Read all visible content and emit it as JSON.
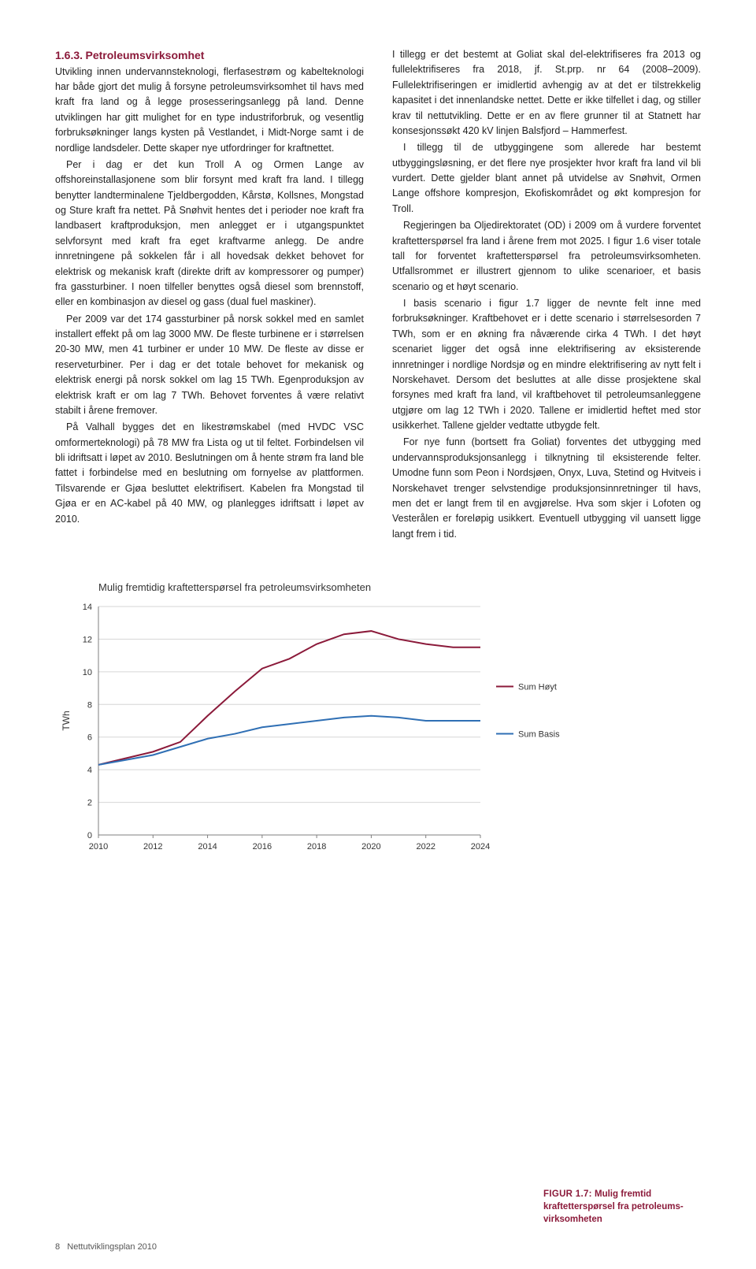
{
  "section": {
    "number": "1.6.3.",
    "title": "Petroleumsvirksomhet"
  },
  "left_col": {
    "p1": "Utvikling innen undervannsteknologi, flerfasestrøm og kabelteknologi har både gjort det mulig å forsyne petroleumsvirksomhet til havs med kraft fra land og å legge prosesseringsanlegg på land. Denne utviklingen har gitt mulighet for en type industriforbruk, og vesentlig forbruksøkninger langs kysten på Vestlandet, i Midt-Norge samt i de nordlige landsdeler. Dette skaper nye utfordringer for kraftnettet.",
    "p2": "Per i dag er det kun Troll A og Ormen Lange av offshoreinstallasjonene som blir forsynt med kraft fra land. I tillegg benytter landterminalene Tjeldbergodden, Kårstø, Kollsnes, Mongstad og Sture kraft fra nettet. På Snøhvit hentes det i perioder noe kraft fra landbasert kraftproduksjon, men anlegget er i utgangspunktet selvforsynt med kraft fra eget kraftvarme anlegg. De andre innretningene på sokkelen får i all hovedsak dekket behovet for elektrisk og mekanisk kraft (direkte drift av kompressorer og pumper) fra gassturbiner. I noen tilfeller benyttes også diesel som brennstoff, eller en kombinasjon av diesel og gass (dual fuel maskiner).",
    "p3": "Per 2009 var det 174 gassturbiner på norsk sokkel med en samlet installert effekt på om lag 3000 MW. De fleste turbinene er i størrelsen 20-30 MW, men 41 turbiner er under 10 MW. De fleste av disse er reserveturbiner. Per i dag er det totale behovet for mekanisk og elektrisk energi på norsk sokkel om lag 15 TWh. Egenproduksjon av elektrisk kraft er om lag 7 TWh. Behovet forventes å være relativt stabilt i årene fremover.",
    "p4": "På Valhall bygges det en likestrømskabel (med HVDC VSC omformerteknologi) på 78 MW fra Lista og ut til feltet. Forbindelsen vil bli idriftsatt i løpet av 2010. Beslutningen om å hente strøm fra land ble fattet i forbindelse med en beslutning om fornyelse av plattformen. Tilsvarende er Gjøa besluttet elektrifisert. Kabelen fra Mongstad til Gjøa er en AC-kabel på 40 MW, og planlegges idriftsatt i løpet av 2010."
  },
  "right_col": {
    "p1": "I tillegg er det bestemt at Goliat skal del-elektrifiseres fra 2013 og fullelektrifiseres fra 2018, jf. St.prp. nr 64 (2008–2009). Fullelektrifiseringen er imidlertid avhengig av at det er tilstrekkelig kapasitet i det innenlandske nettet. Dette er ikke tilfellet i dag, og stiller krav til nettutvikling. Dette er en av flere grunner til at Statnett har konsesjonssøkt 420 kV linjen Balsfjord – Hammerfest.",
    "p2": "I tillegg til de utbyggingene som allerede har bestemt utbyggingsløsning, er det flere nye prosjekter hvor kraft fra land vil bli vurdert. Dette gjelder blant annet på utvidelse av Snøhvit, Ormen Lange offshore kompresjon, Ekofiskområdet og økt kompresjon for Troll.",
    "p3": "Regjeringen ba Oljedirektoratet (OD) i 2009 om å vurdere forventet kraftetterspørsel fra land i årene frem mot 2025. I figur 1.6 viser totale tall for forventet kraftetterspørsel fra petroleumsvirksomheten. Utfallsrommet er illustrert gjennom to ulike scenarioer, et basis scenario og et høyt scenario.",
    "p4": "I basis scenario i figur 1.7 ligger de nevnte felt inne med forbruksøkninger. Kraftbehovet er i dette scenario i størrelsesorden 7 TWh, som er en økning fra nåværende cirka 4 TWh. I det høyt scenariet ligger det også inne elektrifisering av eksisterende innretninger i nordlige Nordsjø og en mindre elektrifisering av nytt felt i Norskehavet. Dersom det besluttes at alle disse prosjektene skal forsynes med kraft fra land, vil kraftbehovet til petroleumsanleggene utgjøre om lag 12 TWh i 2020. Tallene er imidlertid heftet med stor usikkerhet. Tallene gjelder vedtatte utbygde felt.",
    "p5": "For nye funn (bortsett fra Goliat) forventes det utbygging med undervannsproduksjonsanlegg i tilknytning til eksisterende felter. Umodne funn som Peon i Nordsjøen, Onyx, Luva, Stetind og Hvitveis i Norskehavet trenger selvstendige produksjonsinnretninger til havs, men det er langt frem til en avgjørelse. Hva som skjer i Lofoten og Vesterålen er foreløpig usikkert. Eventuell utbygging vil uansett ligge langt frem i tid."
  },
  "chart": {
    "type": "line",
    "title": "Mulig fremtidig kraftetterspørsel fra petroleumsvirksomheten",
    "title_fontsize": 13,
    "title_color": "#333333",
    "ylabel": "TWh",
    "label_fontsize": 12,
    "xlim": [
      2010,
      2024
    ],
    "ylim": [
      0,
      14
    ],
    "ytick_step": 2,
    "xtick_step": 2,
    "grid_color": "#d6d6d6",
    "axis_color": "#7f7f7f",
    "background_color": "#ffffff",
    "line_width": 2,
    "series": [
      {
        "name": "Sum Høyt",
        "color": "#8b1a3a",
        "x": [
          2010,
          2011,
          2012,
          2013,
          2014,
          2015,
          2016,
          2017,
          2018,
          2019,
          2020,
          2021,
          2022,
          2023,
          2024
        ],
        "y": [
          4.3,
          4.7,
          5.1,
          5.7,
          7.3,
          8.8,
          10.2,
          10.8,
          11.7,
          12.3,
          12.5,
          12.0,
          11.7,
          11.5,
          11.5
        ]
      },
      {
        "name": "Sum Basis",
        "color": "#2f6fb4",
        "x": [
          2010,
          2011,
          2012,
          2013,
          2014,
          2015,
          2016,
          2017,
          2018,
          2019,
          2020,
          2021,
          2022,
          2023,
          2024
        ],
        "y": [
          4.3,
          4.6,
          4.9,
          5.4,
          5.9,
          6.2,
          6.6,
          6.8,
          7.0,
          7.2,
          7.3,
          7.2,
          7.0,
          7.0,
          7.0
        ]
      }
    ],
    "legend_label_hoyt": "Sum Høyt",
    "legend_label_basis": "Sum Basis"
  },
  "figure_caption": {
    "label": "Figur 1.7:",
    "text": "Mulig fremtid kraftetterspørsel fra petroleums­virksomheten"
  },
  "footer": {
    "page": "8",
    "doc": "Nettutviklingsplan 2010"
  }
}
